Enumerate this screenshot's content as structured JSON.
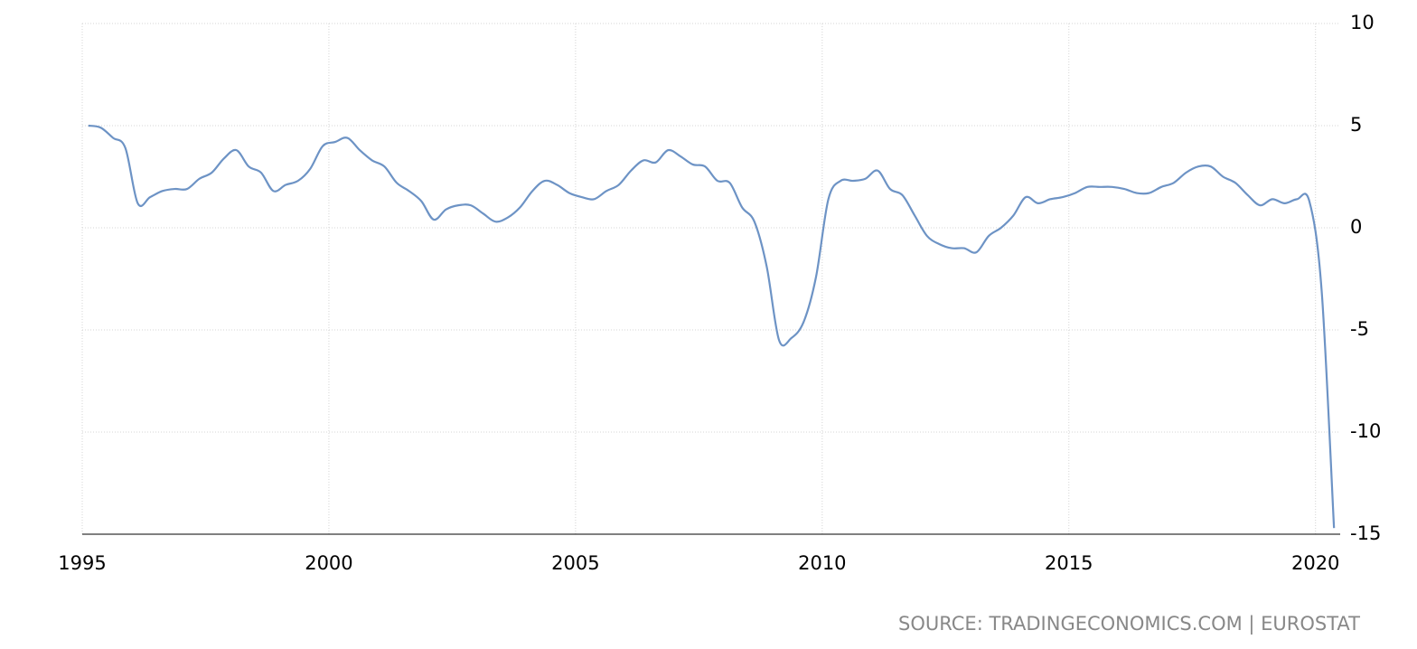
{
  "chart_data": {
    "type": "line",
    "x": [
      1995.125,
      1995.375,
      1995.625,
      1995.875,
      1996.125,
      1996.375,
      1996.625,
      1996.875,
      1997.125,
      1997.375,
      1997.625,
      1997.875,
      1998.125,
      1998.375,
      1998.625,
      1998.875,
      1999.125,
      1999.375,
      1999.625,
      1999.875,
      2000.125,
      2000.375,
      2000.625,
      2000.875,
      2001.125,
      2001.375,
      2001.625,
      2001.875,
      2002.125,
      2002.375,
      2002.625,
      2002.875,
      2003.125,
      2003.375,
      2003.625,
      2003.875,
      2004.125,
      2004.375,
      2004.625,
      2004.875,
      2005.125,
      2005.375,
      2005.625,
      2005.875,
      2006.125,
      2006.375,
      2006.625,
      2006.875,
      2007.125,
      2007.375,
      2007.625,
      2007.875,
      2008.125,
      2008.375,
      2008.625,
      2008.875,
      2009.125,
      2009.375,
      2009.625,
      2009.875,
      2010.125,
      2010.375,
      2010.625,
      2010.875,
      2011.125,
      2011.375,
      2011.625,
      2011.875,
      2012.125,
      2012.375,
      2012.625,
      2012.875,
      2013.125,
      2013.375,
      2013.625,
      2013.875,
      2014.125,
      2014.375,
      2014.625,
      2014.875,
      2015.125,
      2015.375,
      2015.625,
      2015.875,
      2016.125,
      2016.375,
      2016.625,
      2016.875,
      2017.125,
      2017.375,
      2017.625,
      2017.875,
      2018.125,
      2018.375,
      2018.625,
      2018.875,
      2019.125,
      2019.375,
      2019.625,
      2019.875,
      2020.125,
      2020.375
    ],
    "series": [
      {
        "color": "#6d93c5",
        "values": [
          5.0,
          4.9,
          4.4,
          3.9,
          1.2,
          1.5,
          1.8,
          1.9,
          1.9,
          2.4,
          2.7,
          3.4,
          3.8,
          3.0,
          2.7,
          1.8,
          2.1,
          2.3,
          2.9,
          4.0,
          4.2,
          4.4,
          3.8,
          3.3,
          3.0,
          2.2,
          1.8,
          1.3,
          0.4,
          0.9,
          1.1,
          1.1,
          0.7,
          0.3,
          0.5,
          1.0,
          1.8,
          2.3,
          2.1,
          1.7,
          1.5,
          1.4,
          1.8,
          2.1,
          2.8,
          3.3,
          3.2,
          3.8,
          3.5,
          3.1,
          3.0,
          2.3,
          2.2,
          1.0,
          0.3,
          -1.9,
          -5.5,
          -5.4,
          -4.6,
          -2.4,
          1.4,
          2.3,
          2.3,
          2.4,
          2.8,
          1.9,
          1.6,
          0.6,
          -0.4,
          -0.8,
          -1.0,
          -1.0,
          -1.2,
          -0.4,
          0.0,
          0.6,
          1.5,
          1.2,
          1.4,
          1.5,
          1.7,
          2.0,
          2.0,
          2.0,
          1.9,
          1.7,
          1.7,
          2.0,
          2.2,
          2.7,
          3.0,
          3.0,
          2.5,
          2.2,
          1.6,
          1.1,
          1.4,
          1.2,
          1.4,
          1.3,
          -3.1,
          -14.7
        ]
      }
    ],
    "xlim": [
      1995,
      2020.5
    ],
    "xticks": [
      1995,
      2000,
      2005,
      2010,
      2015,
      2020
    ],
    "ylim": [
      -15,
      10
    ],
    "yticks": [
      10,
      5,
      0,
      -5,
      -10,
      -15
    ],
    "grid": true,
    "source": "SOURCE: TRADINGECONOMICS.COM | EUROSTAT"
  }
}
